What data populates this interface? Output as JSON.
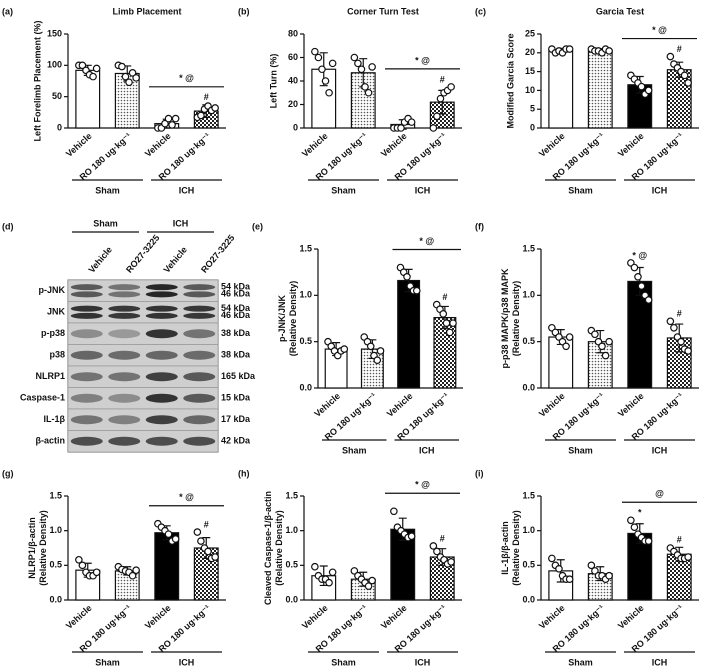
{
  "chart_data": [
    {
      "type": "bar",
      "panel": "(a)",
      "title": "Limb Placement",
      "ylabel": [
        "Left  Forelimb Placement (%)"
      ],
      "categories": [
        "Vehicle",
        "RO 180 ug·kg⁻¹",
        "Vehicle",
        "RO 180 ug·kg⁻¹"
      ],
      "groups": [
        "Sham",
        "ICH"
      ],
      "values": [
        92,
        87,
        7,
        27
      ],
      "errors": [
        8,
        12,
        7,
        10
      ],
      "points": [
        [
          100,
          100,
          92,
          85,
          82,
          95
        ],
        [
          100,
          98,
          82,
          73,
          88,
          80
        ],
        [
          0,
          0,
          7,
          15,
          5,
          15
        ],
        [
          17,
          20,
          30,
          35,
          28,
          32
        ]
      ],
      "fills": [
        "#ffffff",
        "dots",
        "#ffffff",
        "checker"
      ],
      "ylim": [
        0,
        150
      ],
      "yticks": [
        0,
        50,
        100,
        150
      ],
      "bracket": "* @",
      "bar_marks": [
        null,
        null,
        null,
        "#"
      ]
    },
    {
      "type": "bar",
      "panel": "(b)",
      "title": "Corner Turn Test",
      "ylabel": [
        "Left Turn (%)"
      ],
      "categories": [
        "Vehicle",
        "RO 180 ug·kg⁻¹",
        "Vehicle",
        "RO 180 ug·kg⁻¹"
      ],
      "groups": [
        "Sham",
        "ICH"
      ],
      "values": [
        50,
        47,
        3,
        22
      ],
      "errors": [
        14,
        12,
        4,
        10
      ],
      "points": [
        [
          65,
          60,
          50,
          40,
          30,
          55
        ],
        [
          60,
          55,
          50,
          35,
          30,
          52
        ],
        [
          0,
          0,
          0,
          5,
          8,
          5
        ],
        [
          0,
          10,
          25,
          30,
          32,
          35
        ]
      ],
      "fills": [
        "#ffffff",
        "dots",
        "#ffffff",
        "checker"
      ],
      "ylim": [
        0,
        80
      ],
      "yticks": [
        0,
        20,
        40,
        60,
        80
      ],
      "bracket": "* @",
      "bar_marks": [
        null,
        null,
        null,
        "#"
      ]
    },
    {
      "type": "bar",
      "panel": "(c)",
      "title": "Garcia Test",
      "ylabel": [
        "Modified Garcia Score"
      ],
      "categories": [
        "Vehicle",
        "RO 180 ug·kg⁻¹",
        "Vehicle",
        "RO 180 ug·kg⁻¹"
      ],
      "groups": [
        "Sham",
        "ICH"
      ],
      "values": [
        20.5,
        20.5,
        11.5,
        15.5
      ],
      "errors": [
        0.7,
        0.6,
        2.2,
        2
      ],
      "points": [
        [
          21,
          20,
          20.5,
          20,
          21,
          21
        ],
        [
          21,
          20.5,
          20.5,
          20,
          21,
          20.5
        ],
        [
          14,
          13,
          12,
          11,
          9,
          10
        ],
        [
          19,
          17,
          16,
          15,
          14,
          12
        ]
      ],
      "fills": [
        "#ffffff",
        "dots",
        "#000000",
        "checker"
      ],
      "ylim": [
        0,
        25
      ],
      "yticks": [
        0,
        5,
        10,
        15,
        20,
        25
      ],
      "bracket": "* @",
      "bar_marks": [
        null,
        null,
        null,
        "#"
      ]
    },
    {
      "type": "bar",
      "panel": "(e)",
      "ylabel": [
        "p-JNK/JNK",
        "(Relative Density)"
      ],
      "categories": [
        "Vehicle",
        "RO 180 ug·kg⁻¹",
        "Vehicle",
        "RO 180 ug·kg⁻¹"
      ],
      "groups": [
        "Sham",
        "ICH"
      ],
      "values": [
        0.42,
        0.42,
        1.16,
        0.76
      ],
      "errors": [
        0.07,
        0.1,
        0.12,
        0.12
      ],
      "points": [
        [
          0.5,
          0.45,
          0.4,
          0.35,
          0.4,
          0.42
        ],
        [
          0.55,
          0.5,
          0.45,
          0.35,
          0.3,
          0.4
        ],
        [
          1.3,
          1.25,
          1.2,
          1.1,
          1.05,
          1.05
        ],
        [
          0.9,
          0.85,
          0.8,
          0.7,
          0.6,
          0.7
        ]
      ],
      "fills": [
        "#ffffff",
        "dots",
        "#000000",
        "checker"
      ],
      "ylim": [
        0,
        1.5
      ],
      "yticks": [
        {
          "value": 0,
          "label": "0.0"
        },
        0.5,
        {
          "value": 1,
          "label": "1.0"
        },
        1.5
      ],
      "bracket": "* @",
      "bar_marks": [
        null,
        null,
        null,
        "#"
      ]
    },
    {
      "type": "bar",
      "panel": "(f)",
      "ylabel": [
        "p-p38 MAPK/p38 MAPK",
        "(Relative Density)"
      ],
      "categories": [
        "Vehicle",
        "RO 180 ug·kg⁻¹",
        "Vehicle",
        "RO 180 ug·kg⁻¹"
      ],
      "groups": [
        "Sham",
        "ICH"
      ],
      "values": [
        0.55,
        0.5,
        1.15,
        0.54
      ],
      "errors": [
        0.08,
        0.12,
        0.15,
        0.15
      ],
      "points": [
        [
          0.65,
          0.6,
          0.55,
          0.5,
          0.45,
          0.55
        ],
        [
          0.62,
          0.58,
          0.5,
          0.45,
          0.35,
          0.5
        ],
        [
          1.35,
          1.3,
          1.2,
          1.1,
          1.0,
          0.95
        ],
        [
          0.72,
          0.65,
          0.55,
          0.5,
          0.42,
          0.4
        ]
      ],
      "fills": [
        "#ffffff",
        "dots",
        "#000000",
        "checker"
      ],
      "ylim": [
        0,
        1.5
      ],
      "yticks": [
        {
          "value": 0,
          "label": "0.0"
        },
        0.5,
        {
          "value": 1,
          "label": "1.0"
        },
        1.5
      ],
      "bar_marks": [
        null,
        null,
        "* @",
        "#"
      ]
    },
    {
      "type": "bar",
      "panel": "(g)",
      "ylabel": [
        "NLRP1/β-actin",
        "(Relative Density)"
      ],
      "categories": [
        "Vehicle",
        "RO 180 ug·kg⁻¹",
        "Vehicle",
        "RO 180 ug·kg⁻¹"
      ],
      "groups": [
        "Sham",
        "ICH"
      ],
      "values": [
        0.43,
        0.42,
        0.97,
        0.75
      ],
      "errors": [
        0.1,
        0.06,
        0.1,
        0.15
      ],
      "points": [
        [
          0.58,
          0.5,
          0.4,
          0.35,
          0.35,
          0.4
        ],
        [
          0.48,
          0.44,
          0.42,
          0.4,
          0.35,
          0.43
        ],
        [
          1.1,
          1.05,
          1.0,
          0.95,
          0.85,
          0.88
        ],
        [
          0.98,
          0.85,
          0.75,
          0.7,
          0.6,
          0.62
        ]
      ],
      "fills": [
        "#ffffff",
        "dots",
        "#000000",
        "checker"
      ],
      "ylim": [
        0,
        1.5
      ],
      "yticks": [
        {
          "value": 0,
          "label": "0.0"
        },
        0.5,
        {
          "value": 1,
          "label": "1.0"
        },
        1.5
      ],
      "bracket": "* @",
      "bar_marks": [
        null,
        null,
        null,
        "#"
      ]
    },
    {
      "type": "bar",
      "panel": "(h)",
      "ylabel": [
        "Cleaved Caspase-1/β-actin",
        "(Relative Density)"
      ],
      "categories": [
        "Vehicle",
        "RO 180 ug·kg⁻¹",
        "Vehicle",
        "RO 180 ug·kg⁻¹"
      ],
      "groups": [
        "Sham",
        "ICH"
      ],
      "values": [
        0.35,
        0.3,
        1.02,
        0.62
      ],
      "errors": [
        0.14,
        0.1,
        0.16,
        0.12
      ],
      "points": [
        [
          0.48,
          0.35,
          0.3,
          0.3,
          0.25,
          0.4
        ],
        [
          0.42,
          0.35,
          0.3,
          0.25,
          0.2,
          0.28
        ],
        [
          1.28,
          1.05,
          1.0,
          0.95,
          0.9,
          0.92
        ],
        [
          0.78,
          0.7,
          0.62,
          0.58,
          0.52,
          0.55
        ]
      ],
      "fills": [
        "#ffffff",
        "dots",
        "#000000",
        "checker"
      ],
      "ylim": [
        0,
        1.5
      ],
      "yticks": [
        {
          "value": 0,
          "label": "0.0"
        },
        0.5,
        {
          "value": 1,
          "label": "1.0"
        },
        1.5
      ],
      "bracket": "* @",
      "bar_marks": [
        null,
        null,
        null,
        "#"
      ]
    },
    {
      "type": "bar",
      "panel": "(i)",
      "ylabel": [
        "IL-1β/β-actin",
        "(Relative Density)"
      ],
      "categories": [
        "Vehicle",
        "RO 180 ug·kg⁻¹",
        "Vehicle",
        "RO 180 ug·kg⁻¹"
      ],
      "groups": [
        "Sham",
        "ICH"
      ],
      "values": [
        0.42,
        0.38,
        0.96,
        0.66
      ],
      "errors": [
        0.16,
        0.1,
        0.14,
        0.1
      ],
      "points": [
        [
          0.6,
          0.5,
          0.45,
          0.35,
          0.3,
          0.3
        ],
        [
          0.5,
          0.42,
          0.35,
          0.35,
          0.3,
          0.35
        ],
        [
          1.15,
          1.05,
          0.95,
          0.9,
          0.85,
          0.85
        ],
        [
          0.75,
          0.7,
          0.65,
          0.6,
          0.6,
          0.62
        ]
      ],
      "fills": [
        "#ffffff",
        "dots",
        "#000000",
        "checker"
      ],
      "ylim": [
        0,
        1.5
      ],
      "yticks": [
        {
          "value": 0,
          "label": "0.0"
        },
        0.5,
        {
          "value": 1,
          "label": "1.0"
        },
        1.5
      ],
      "bracket": "@",
      "bar_marks": [
        null,
        null,
        "*",
        "#"
      ]
    }
  ],
  "blot": {
    "panel": "(d)",
    "groups": [
      "Sham",
      "ICH"
    ],
    "lanes": [
      "Vehicle",
      "RO27-3225",
      "Vehicle",
      "RO27-3225"
    ],
    "rows": [
      {
        "label": "p-JNK",
        "kda": [
          "54 kDa",
          "46 kDa"
        ]
      },
      {
        "label": "JNK",
        "kda": [
          "54 kDa",
          "46 kDa"
        ]
      },
      {
        "label": "p-p38",
        "kda": [
          "38 kDa"
        ]
      },
      {
        "label": "p38",
        "kda": [
          "38 kDa"
        ]
      },
      {
        "label": "NLRP1",
        "kda": [
          "165 kDa"
        ]
      },
      {
        "label": "Caspase-1",
        "kda": [
          "15 kDa"
        ]
      },
      {
        "label": "IL-1β",
        "kda": [
          "17 kDa"
        ]
      },
      {
        "label": "β-actin",
        "kda": [
          "42 kDa"
        ]
      }
    ]
  }
}
